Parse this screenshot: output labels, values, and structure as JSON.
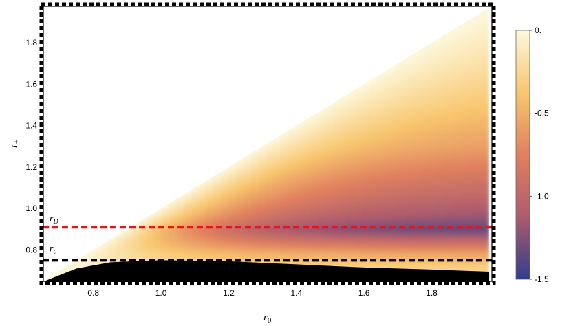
{
  "chart_data": {
    "type": "heatmap",
    "title": "",
    "xlabel": "r",
    "xlabel_sub": "0",
    "ylabel": "r",
    "ylabel_sub": "+",
    "xlim": [
      0.65,
      1.98
    ],
    "ylim": [
      0.645,
      1.98
    ],
    "x_ticks": [
      0.8,
      1.0,
      1.2,
      1.4,
      1.6,
      1.8
    ],
    "x_tick_labels": [
      "0.8",
      "1.0",
      "1.2",
      "1.4",
      "1.6",
      "1.8"
    ],
    "y_ticks": [
      0.8,
      1.0,
      1.2,
      1.4,
      1.6,
      1.8
    ],
    "y_tick_labels": [
      "0.8",
      "1.0",
      "1.2",
      "1.4",
      "1.6",
      "1.8"
    ],
    "colorbar": {
      "min": -1.5,
      "max": 0.0,
      "ticks": [
        0.0,
        -0.5,
        -1.0,
        -1.5
      ],
      "tick_labels": [
        "0.",
        "-0.5",
        "-1.0",
        "-1.5"
      ],
      "colors": [
        "#fdf8dc",
        "#f8c66e",
        "#e0805f",
        "#ad5c6e",
        "#303e8c"
      ]
    },
    "filled_region": {
      "boundary": "r_plus < r_0",
      "x_end": 1.97
    },
    "excluded_region": {
      "color": "#000000",
      "upper_boundary": [
        [
          0.66,
          0.652
        ],
        [
          0.75,
          0.71
        ],
        [
          0.85,
          0.74
        ],
        [
          1.0,
          0.75
        ],
        [
          1.2,
          0.745
        ],
        [
          1.4,
          0.73
        ],
        [
          1.6,
          0.715
        ],
        [
          1.8,
          0.705
        ],
        [
          1.97,
          0.695
        ]
      ]
    },
    "horizontal_lines": [
      {
        "label": "r",
        "sub": "D",
        "y": 0.91,
        "color": "#e8141c",
        "dash": true
      },
      {
        "label": "r",
        "sub": "c",
        "y": 0.75,
        "color": "#000000",
        "dash": true
      }
    ],
    "frame_style": "dashed-thick-black"
  }
}
